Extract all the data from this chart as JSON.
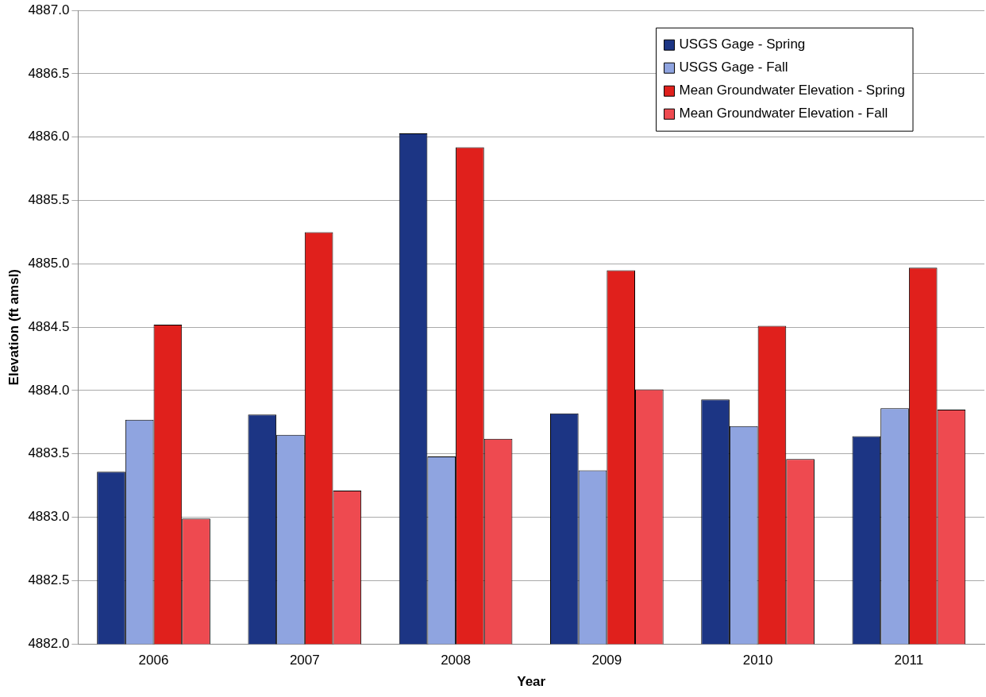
{
  "chart_data": {
    "type": "bar",
    "xlabel": "Year",
    "ylabel": "Elevation (ft amsl)",
    "categories": [
      "2006",
      "2007",
      "2008",
      "2009",
      "2010",
      "2011"
    ],
    "series": [
      {
        "name": "USGS Gage - Spring",
        "color": "#1c3584",
        "values": [
          4883.36,
          4883.81,
          4886.03,
          4883.82,
          4883.93,
          4883.64
        ]
      },
      {
        "name": "USGS Gage - Fall",
        "color": "#8fa4e0",
        "values": [
          4883.77,
          4883.65,
          4883.48,
          4883.37,
          4883.72,
          4883.86
        ]
      },
      {
        "name": "Mean Groundwater Elevation - Spring",
        "color": "#e0201c",
        "values": [
          4884.52,
          4885.25,
          4885.92,
          4884.95,
          4884.51,
          4884.97
        ]
      },
      {
        "name": "Mean Groundwater Elevation - Fall",
        "color": "#ee4a50",
        "values": [
          4882.99,
          4883.21,
          4883.62,
          4884.01,
          4883.46,
          4883.85
        ]
      }
    ],
    "ylim": [
      4882.0,
      4887.0
    ],
    "yticks": [
      {
        "value": 4882,
        "label": "4882.0"
      },
      {
        "value": 4882.5,
        "label": "4882.5"
      },
      {
        "value": 4883,
        "label": "4883.0"
      },
      {
        "value": 4883.5,
        "label": "4883.5"
      },
      {
        "value": 4884,
        "label": "4884.0"
      },
      {
        "value": 4884.5,
        "label": "4884.5"
      },
      {
        "value": 4885,
        "label": "4885.0"
      },
      {
        "value": 4885.5,
        "label": "4885.5"
      },
      {
        "value": 4886,
        "label": "4886.0"
      },
      {
        "value": 4886.5,
        "label": "4886.5"
      },
      {
        "value": 4887,
        "label": "4887.0"
      }
    ],
    "grid": "y",
    "legend": "top right"
  }
}
